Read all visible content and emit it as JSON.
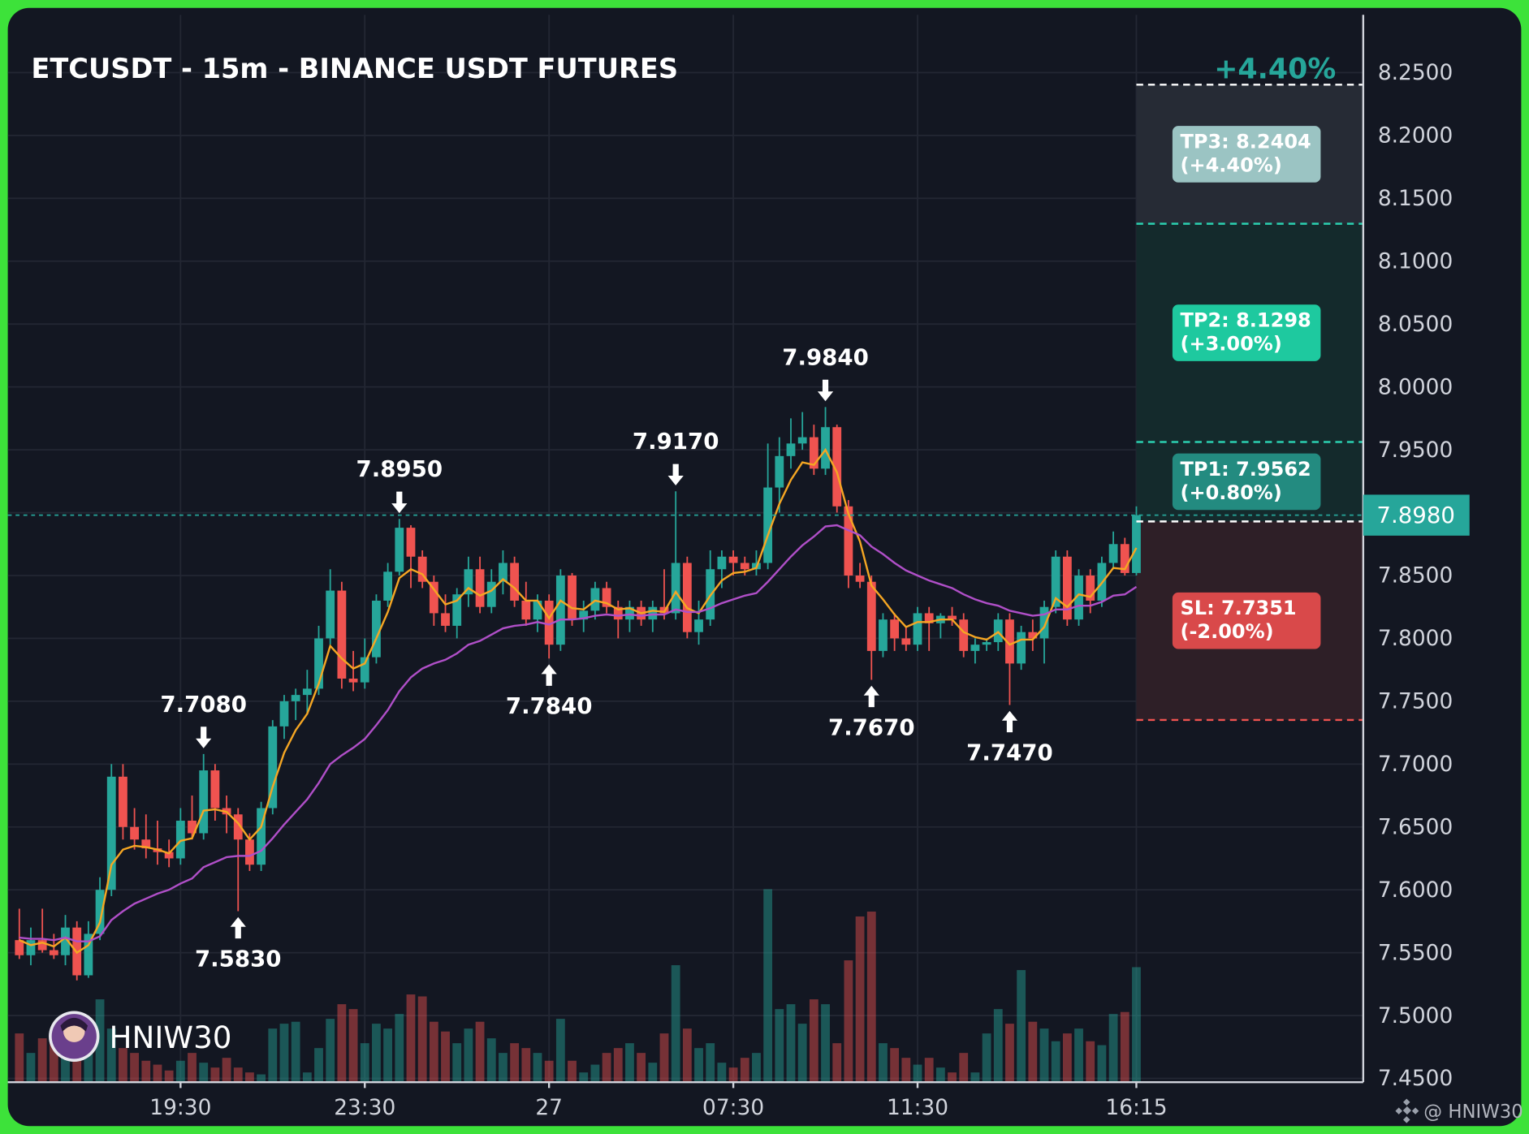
{
  "chart_data": {
    "type": "candlestick",
    "title": "ETCUSDT - 15m - BINANCE USDT FUTURES",
    "header_pct": "+4.40%",
    "watermark": "HNIW30",
    "credit": "@ HNIW30",
    "up_color": "#26a69a",
    "down_color": "#ef5350",
    "grid": true,
    "xlim": [
      -1,
      116.7
    ],
    "xticks": [
      {
        "value": 14,
        "label": "19:30"
      },
      {
        "value": 30,
        "label": "23:30"
      },
      {
        "value": 46,
        "label": "27"
      },
      {
        "value": 62,
        "label": "07:30"
      },
      {
        "value": 78,
        "label": "11:30"
      },
      {
        "value": 97,
        "label": "16:15"
      }
    ],
    "ylim": [
      7.447,
      8.296
    ],
    "yticks": [
      {
        "value": 8.25,
        "label": "8.2500"
      },
      {
        "value": 8.2,
        "label": "8.2000"
      },
      {
        "value": 8.15,
        "label": "8.1500"
      },
      {
        "value": 8.1,
        "label": "8.1000"
      },
      {
        "value": 8.05,
        "label": "8.0500"
      },
      {
        "value": 8.0,
        "label": "8.0000"
      },
      {
        "value": 7.95,
        "label": "7.9500"
      },
      {
        "value": 7.9,
        "label": "7.9000"
      },
      {
        "value": 7.85,
        "label": "7.8500"
      },
      {
        "value": 7.8,
        "label": "7.8000"
      },
      {
        "value": 7.75,
        "label": "7.7500"
      },
      {
        "value": 7.7,
        "label": "7.7000"
      },
      {
        "value": 7.65,
        "label": "7.6500"
      },
      {
        "value": 7.6,
        "label": "7.6000"
      },
      {
        "value": 7.55,
        "label": "7.5500"
      },
      {
        "value": 7.5,
        "label": "7.5000"
      },
      {
        "value": 7.45,
        "label": "7.4500"
      }
    ],
    "ohlc": [
      [
        7.56,
        7.585,
        7.545,
        7.548
      ],
      [
        7.548,
        7.57,
        7.54,
        7.56
      ],
      [
        7.56,
        7.585,
        7.55,
        7.552
      ],
      [
        7.552,
        7.565,
        7.545,
        7.548
      ],
      [
        7.548,
        7.58,
        7.54,
        7.57
      ],
      [
        7.57,
        7.575,
        7.528,
        7.532
      ],
      [
        7.532,
        7.575,
        7.53,
        7.565
      ],
      [
        7.565,
        7.61,
        7.56,
        7.6
      ],
      [
        7.6,
        7.7,
        7.595,
        7.69
      ],
      [
        7.69,
        7.7,
        7.64,
        7.65
      ],
      [
        7.65,
        7.665,
        7.632,
        7.64
      ],
      [
        7.64,
        7.66,
        7.625,
        7.633
      ],
      [
        7.633,
        7.655,
        7.62,
        7.63
      ],
      [
        7.63,
        7.64,
        7.618,
        7.625
      ],
      [
        7.625,
        7.665,
        7.62,
        7.655
      ],
      [
        7.655,
        7.675,
        7.64,
        7.645
      ],
      [
        7.645,
        7.708,
        7.64,
        7.695
      ],
      [
        7.695,
        7.7,
        7.655,
        7.665
      ],
      [
        7.665,
        7.675,
        7.645,
        7.66
      ],
      [
        7.66,
        7.665,
        7.583,
        7.64
      ],
      [
        7.64,
        7.645,
        7.615,
        7.62
      ],
      [
        7.62,
        7.67,
        7.615,
        7.665
      ],
      [
        7.665,
        7.735,
        7.66,
        7.73
      ],
      [
        7.73,
        7.755,
        7.72,
        7.75
      ],
      [
        7.75,
        7.76,
        7.735,
        7.755
      ],
      [
        7.755,
        7.775,
        7.74,
        7.76
      ],
      [
        7.76,
        7.81,
        7.755,
        7.8
      ],
      [
        7.8,
        7.855,
        7.795,
        7.838
      ],
      [
        7.838,
        7.845,
        7.76,
        7.768
      ],
      [
        7.768,
        7.79,
        7.758,
        7.765
      ],
      [
        7.765,
        7.8,
        7.76,
        7.785
      ],
      [
        7.785,
        7.835,
        7.78,
        7.83
      ],
      [
        7.83,
        7.86,
        7.825,
        7.853
      ],
      [
        7.853,
        7.895,
        7.85,
        7.888
      ],
      [
        7.888,
        7.89,
        7.84,
        7.865
      ],
      [
        7.865,
        7.87,
        7.84,
        7.845
      ],
      [
        7.845,
        7.85,
        7.81,
        7.82
      ],
      [
        7.82,
        7.835,
        7.805,
        7.81
      ],
      [
        7.81,
        7.84,
        7.8,
        7.835
      ],
      [
        7.835,
        7.865,
        7.825,
        7.855
      ],
      [
        7.855,
        7.865,
        7.82,
        7.825
      ],
      [
        7.825,
        7.855,
        7.82,
        7.845
      ],
      [
        7.845,
        7.87,
        7.835,
        7.86
      ],
      [
        7.86,
        7.865,
        7.825,
        7.83
      ],
      [
        7.83,
        7.845,
        7.81,
        7.815
      ],
      [
        7.815,
        7.835,
        7.805,
        7.83
      ],
      [
        7.83,
        7.835,
        7.784,
        7.795
      ],
      [
        7.795,
        7.855,
        7.79,
        7.85
      ],
      [
        7.85,
        7.852,
        7.81,
        7.815
      ],
      [
        7.815,
        7.83,
        7.805,
        7.822
      ],
      [
        7.822,
        7.845,
        7.815,
        7.84
      ],
      [
        7.84,
        7.845,
        7.82,
        7.825
      ],
      [
        7.825,
        7.83,
        7.8,
        7.815
      ],
      [
        7.815,
        7.83,
        7.805,
        7.825
      ],
      [
        7.825,
        7.83,
        7.81,
        7.815
      ],
      [
        7.815,
        7.83,
        7.805,
        7.825
      ],
      [
        7.825,
        7.855,
        7.815,
        7.82
      ],
      [
        7.82,
        7.917,
        7.815,
        7.86
      ],
      [
        7.86,
        7.865,
        7.8,
        7.805
      ],
      [
        7.805,
        7.83,
        7.795,
        7.815
      ],
      [
        7.815,
        7.87,
        7.81,
        7.855
      ],
      [
        7.855,
        7.87,
        7.84,
        7.865
      ],
      [
        7.865,
        7.87,
        7.85,
        7.86
      ],
      [
        7.86,
        7.865,
        7.85,
        7.855
      ],
      [
        7.855,
        7.87,
        7.85,
        7.86
      ],
      [
        7.86,
        7.955,
        7.855,
        7.92
      ],
      [
        7.92,
        7.96,
        7.9,
        7.945
      ],
      [
        7.945,
        7.975,
        7.935,
        7.955
      ],
      [
        7.955,
        7.98,
        7.95,
        7.96
      ],
      [
        7.96,
        7.97,
        7.93,
        7.935
      ],
      [
        7.935,
        7.984,
        7.93,
        7.968
      ],
      [
        7.968,
        7.97,
        7.9,
        7.905
      ],
      [
        7.905,
        7.91,
        7.84,
        7.85
      ],
      [
        7.85,
        7.86,
        7.84,
        7.845
      ],
      [
        7.845,
        7.85,
        7.767,
        7.79
      ],
      [
        7.79,
        7.82,
        7.785,
        7.815
      ],
      [
        7.815,
        7.82,
        7.79,
        7.8
      ],
      [
        7.8,
        7.81,
        7.79,
        7.795
      ],
      [
        7.795,
        7.825,
        7.79,
        7.82
      ],
      [
        7.82,
        7.825,
        7.79,
        7.812
      ],
      [
        7.812,
        7.82,
        7.8,
        7.818
      ],
      [
        7.818,
        7.825,
        7.81,
        7.815
      ],
      [
        7.815,
        7.82,
        7.785,
        7.79
      ],
      [
        7.79,
        7.8,
        7.78,
        7.795
      ],
      [
        7.795,
        7.8,
        7.79,
        7.797
      ],
      [
        7.797,
        7.82,
        7.79,
        7.815
      ],
      [
        7.815,
        7.82,
        7.747,
        7.78
      ],
      [
        7.78,
        7.81,
        7.775,
        7.805
      ],
      [
        7.805,
        7.815,
        7.79,
        7.8
      ],
      [
        7.8,
        7.83,
        7.78,
        7.825
      ],
      [
        7.825,
        7.87,
        7.82,
        7.865
      ],
      [
        7.865,
        7.87,
        7.81,
        7.815
      ],
      [
        7.815,
        7.855,
        7.81,
        7.85
      ],
      [
        7.85,
        7.855,
        7.82,
        7.83
      ],
      [
        7.83,
        7.865,
        7.825,
        7.86
      ],
      [
        7.86,
        7.885,
        7.855,
        7.875
      ],
      [
        7.875,
        7.88,
        7.85,
        7.852
      ],
      [
        7.852,
        7.905,
        7.85,
        7.898
      ]
    ],
    "volume": [
      50,
      30,
      45,
      40,
      40,
      60,
      45,
      85,
      55,
      35,
      30,
      22,
      18,
      12,
      22,
      30,
      20,
      15,
      25,
      15,
      10,
      8,
      55,
      60,
      62,
      10,
      35,
      65,
      80,
      75,
      40,
      60,
      55,
      70,
      90,
      88,
      62,
      52,
      40,
      55,
      62,
      45,
      30,
      40,
      35,
      30,
      22,
      65,
      22,
      10,
      18,
      30,
      35,
      40,
      30,
      20,
      50,
      120,
      55,
      35,
      40,
      20,
      15,
      25,
      30,
      198,
      75,
      80,
      60,
      85,
      80,
      40,
      125,
      170,
      175,
      40,
      35,
      25,
      18,
      25,
      15,
      10,
      30,
      10,
      50,
      75,
      60,
      115,
      62,
      55,
      42,
      50,
      55,
      42,
      38,
      70,
      72,
      118
    ],
    "series": [
      {
        "color": "#f5a623",
        "values": [
          7.56,
          7.556,
          7.558,
          7.555,
          7.562,
          7.55,
          7.556,
          7.574,
          7.62,
          7.632,
          7.635,
          7.634,
          7.632,
          7.629,
          7.639,
          7.641,
          7.663,
          7.664,
          7.662,
          7.653,
          7.64,
          7.65,
          7.682,
          7.709,
          7.727,
          7.74,
          7.764,
          7.794,
          7.784,
          7.776,
          7.78,
          7.8,
          7.821,
          7.848,
          7.855,
          7.851,
          7.839,
          7.827,
          7.83,
          7.84,
          7.834,
          7.838,
          7.847,
          7.84,
          7.83,
          7.83,
          7.816,
          7.83,
          7.824,
          7.823,
          7.83,
          7.828,
          7.823,
          7.824,
          7.82,
          7.822,
          7.821,
          7.837,
          7.824,
          7.82,
          7.834,
          7.846,
          7.852,
          7.853,
          7.856,
          7.882,
          7.907,
          7.926,
          7.94,
          7.938,
          7.95,
          7.932,
          7.899,
          7.877,
          7.842,
          7.831,
          7.819,
          7.809,
          7.813,
          7.813,
          7.815,
          7.815,
          7.805,
          7.801,
          7.799,
          7.805,
          7.795,
          7.799,
          7.799,
          7.809,
          7.832,
          7.825,
          7.835,
          7.833,
          7.844,
          7.856,
          7.855,
          7.872
        ]
      },
      {
        "color": "#b04fc8",
        "values": [
          7.562,
          7.561,
          7.561,
          7.56,
          7.562,
          7.559,
          7.559,
          7.563,
          7.576,
          7.583,
          7.589,
          7.593,
          7.597,
          7.6,
          7.605,
          7.609,
          7.618,
          7.622,
          7.626,
          7.627,
          7.627,
          7.631,
          7.641,
          7.652,
          7.662,
          7.672,
          7.685,
          7.7,
          7.707,
          7.713,
          7.72,
          7.731,
          7.743,
          7.758,
          7.769,
          7.776,
          7.78,
          7.783,
          7.788,
          7.795,
          7.798,
          7.803,
          7.808,
          7.81,
          7.811,
          7.813,
          7.811,
          7.815,
          7.815,
          7.816,
          7.818,
          7.819,
          7.818,
          7.819,
          7.818,
          7.819,
          7.819,
          7.823,
          7.821,
          7.821,
          7.824,
          7.828,
          7.831,
          7.834,
          7.836,
          7.845,
          7.855,
          7.865,
          7.874,
          7.881,
          7.889,
          7.89,
          7.886,
          7.882,
          7.873,
          7.867,
          7.86,
          7.854,
          7.85,
          7.846,
          7.843,
          7.84,
          7.835,
          7.831,
          7.828,
          7.826,
          7.822,
          7.82,
          7.818,
          7.819,
          7.823,
          7.823,
          7.826,
          7.826,
          7.829,
          7.834,
          7.835,
          7.841
        ]
      }
    ],
    "annotations": [
      {
        "x": 16,
        "value": 7.708,
        "label": "7.7080",
        "kind": "high"
      },
      {
        "x": 19,
        "value": 7.583,
        "label": "7.5830",
        "kind": "low"
      },
      {
        "x": 33,
        "value": 7.895,
        "label": "7.8950",
        "kind": "high"
      },
      {
        "x": 46,
        "value": 7.784,
        "label": "7.7840",
        "kind": "low"
      },
      {
        "x": 57,
        "value": 7.917,
        "label": "7.9170",
        "kind": "high"
      },
      {
        "x": 70,
        "value": 7.984,
        "label": "7.9840",
        "kind": "high"
      },
      {
        "x": 74,
        "value": 7.767,
        "label": "7.7670",
        "kind": "low"
      },
      {
        "x": 86,
        "value": 7.747,
        "label": "7.7470",
        "kind": "low"
      }
    ],
    "last_price": {
      "value": 7.898,
      "label": "7.8980",
      "color": "#26a69a"
    },
    "entry": {
      "value": 7.893,
      "color": "#ffffff"
    },
    "targets": [
      {
        "label": "TP3: 8.2404",
        "pct": "(+4.40%)",
        "value": 8.2404,
        "color": "#9bc4c3",
        "line_color": "#ffffff",
        "zone_color": "#262b35"
      },
      {
        "label": "TP2: 8.1298",
        "pct": "(+3.00%)",
        "value": 8.1298,
        "color": "#1ec99f",
        "line_color": "#2bd0b0",
        "zone_color": "#142a2c"
      },
      {
        "label": "TP1: 7.9562",
        "pct": "(+0.80%)",
        "value": 7.9562,
        "color": "#238b80",
        "line_color": "#2bd0b0",
        "zone_color": "#142a2c"
      },
      {
        "label": "SL: 7.7351",
        "pct": "(-2.00%)",
        "value": 7.7351,
        "color": "#d9494a",
        "line_color": "#ef5350",
        "zone_color": "#2e1f27"
      }
    ]
  }
}
